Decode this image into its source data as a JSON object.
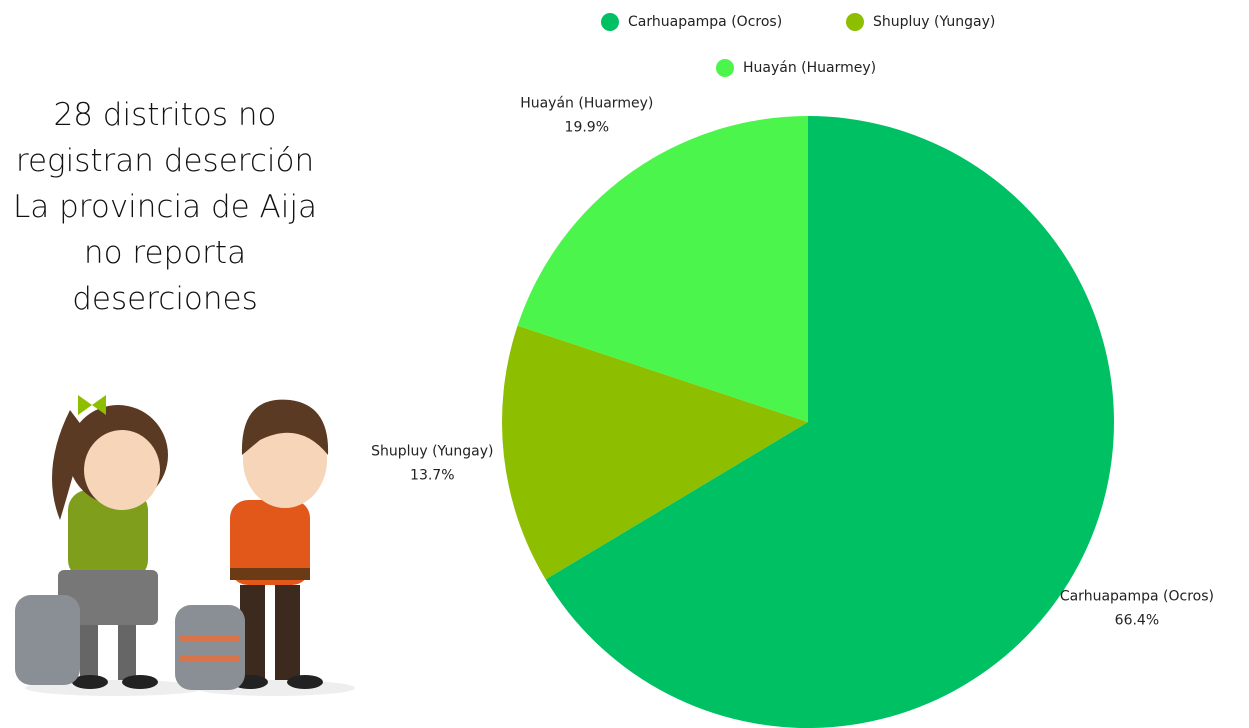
{
  "chart_data": {
    "type": "pie",
    "annotations": [
      "28 distritos no registran deserción",
      "La provincia de Aija no reporta deserciones"
    ],
    "categories": [
      "Carhuapampa (Ocros)",
      "Shupluy (Yungay)",
      "Huayán (Huarmey)"
    ],
    "values": [
      66.4,
      13.7,
      19.9
    ],
    "value_labels": [
      "66.4%",
      "13.7%",
      "19.9%"
    ],
    "colors": [
      "#00c064",
      "#8dbf00",
      "#4cf54c"
    ],
    "legend": "top"
  }
}
